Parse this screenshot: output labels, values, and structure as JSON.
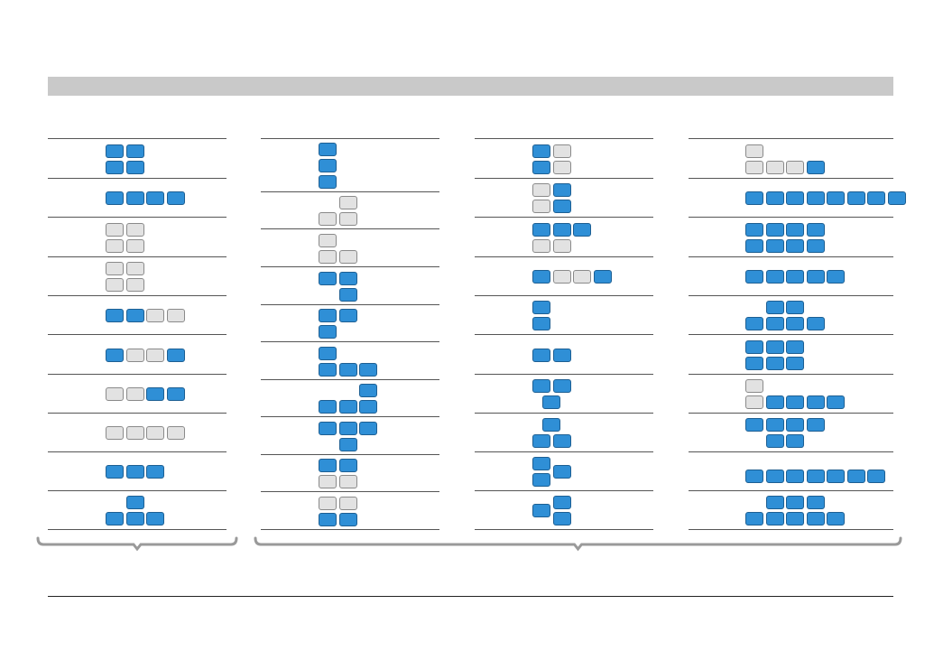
{
  "colors": {
    "on": "#2f8fd6",
    "off": "#e2e2e2",
    "rule": "#555555",
    "bracket": "#9a9a9a",
    "header": "#c9c9c9"
  },
  "columns": [
    {
      "rows": [
        {
          "cells": [
            [
              1,
              1,
              "on"
            ],
            [
              2,
              1,
              "on"
            ],
            [
              1,
              2,
              "on"
            ],
            [
              2,
              2,
              "on"
            ]
          ]
        },
        {
          "cells": [
            [
              1,
              1,
              "on"
            ],
            [
              2,
              1,
              "on"
            ],
            [
              3,
              1,
              "on"
            ],
            [
              4,
              1,
              "on"
            ]
          ]
        },
        {
          "cells": [
            [
              1,
              1,
              "off"
            ],
            [
              2,
              1,
              "off"
            ],
            [
              1,
              2,
              "off"
            ],
            [
              2,
              2,
              "off"
            ]
          ]
        },
        {
          "cells": [
            [
              1,
              1,
              "off"
            ],
            [
              2,
              1,
              "off"
            ],
            [
              1,
              2,
              "off"
            ],
            [
              2,
              2,
              "off"
            ]
          ]
        },
        {
          "cells": [
            [
              1,
              1,
              "on"
            ],
            [
              2,
              1,
              "on"
            ],
            [
              3,
              1,
              "off"
            ],
            [
              4,
              1,
              "off"
            ]
          ]
        },
        {
          "cells": [
            [
              1,
              1,
              "on"
            ],
            [
              2,
              1,
              "off"
            ],
            [
              3,
              1,
              "off"
            ],
            [
              4,
              1,
              "on"
            ]
          ]
        },
        {
          "cells": [
            [
              1,
              1,
              "off"
            ],
            [
              2,
              1,
              "off"
            ],
            [
              3,
              1,
              "on"
            ],
            [
              4,
              1,
              "on"
            ]
          ]
        },
        {
          "cells": [
            [
              1,
              1,
              "off"
            ],
            [
              2,
              1,
              "off"
            ],
            [
              3,
              1,
              "off"
            ],
            [
              4,
              1,
              "off"
            ]
          ]
        },
        {
          "cells": [
            [
              1,
              1,
              "on"
            ],
            [
              2,
              1,
              "on"
            ],
            [
              3,
              1,
              "on"
            ]
          ]
        },
        {
          "cells": [
            [
              2,
              1,
              "on"
            ],
            [
              1,
              2,
              "on"
            ],
            [
              2,
              2,
              "on"
            ],
            [
              3,
              2,
              "on"
            ]
          ]
        }
      ]
    },
    {
      "rows": [
        {
          "cells": [
            [
              1,
              1,
              "on"
            ],
            [
              1,
              2,
              "on"
            ],
            [
              1,
              3,
              "on"
            ]
          ]
        },
        {
          "cells": [
            [
              2,
              1,
              "off"
            ],
            [
              1,
              2,
              "off"
            ],
            [
              2,
              2,
              "off"
            ]
          ]
        },
        {
          "cells": [
            [
              1,
              1,
              "off"
            ],
            [
              1,
              2,
              "off"
            ],
            [
              2,
              2,
              "off"
            ]
          ]
        },
        {
          "cells": [
            [
              1,
              1,
              "on"
            ],
            [
              2,
              1,
              "on"
            ],
            [
              2,
              2,
              "on"
            ]
          ]
        },
        {
          "cells": [
            [
              1,
              1,
              "on"
            ],
            [
              2,
              1,
              "on"
            ],
            [
              1,
              2,
              "on"
            ]
          ]
        },
        {
          "cells": [
            [
              1,
              1,
              "on"
            ],
            [
              1,
              2,
              "on"
            ],
            [
              2,
              2,
              "on"
            ],
            [
              3,
              2,
              "on"
            ]
          ]
        },
        {
          "cells": [
            [
              3,
              1,
              "on"
            ],
            [
              1,
              2,
              "on"
            ],
            [
              2,
              2,
              "on"
            ],
            [
              3,
              2,
              "on"
            ]
          ]
        },
        {
          "cells": [
            [
              1,
              1,
              "on"
            ],
            [
              2,
              1,
              "on"
            ],
            [
              3,
              1,
              "on"
            ],
            [
              2,
              2,
              "on"
            ]
          ]
        },
        {
          "cells": [
            [
              1,
              1,
              "on"
            ],
            [
              2,
              1,
              "on"
            ],
            [
              1,
              2,
              "off"
            ],
            [
              2,
              2,
              "off"
            ]
          ]
        },
        {
          "cells": [
            [
              1,
              1,
              "off"
            ],
            [
              2,
              1,
              "off"
            ],
            [
              1,
              2,
              "on"
            ],
            [
              2,
              2,
              "on"
            ]
          ]
        }
      ]
    },
    {
      "rows": [
        {
          "cells": [
            [
              1,
              1,
              "on"
            ],
            [
              2,
              1,
              "off"
            ],
            [
              1,
              2,
              "on"
            ],
            [
              2,
              2,
              "off"
            ]
          ]
        },
        {
          "cells": [
            [
              1,
              1,
              "off"
            ],
            [
              2,
              1,
              "on"
            ],
            [
              1,
              2,
              "off"
            ],
            [
              2,
              2,
              "on"
            ]
          ]
        },
        {
          "cells": [
            [
              1,
              1,
              "on"
            ],
            [
              2,
              1,
              "on"
            ],
            [
              3,
              1,
              "on"
            ],
            [
              1,
              2,
              "off"
            ],
            [
              2,
              2,
              "off"
            ]
          ]
        },
        {
          "cells": [
            [
              1,
              1,
              "on"
            ],
            [
              2,
              1,
              "off"
            ],
            [
              3,
              1,
              "off"
            ],
            [
              4,
              1,
              "on"
            ]
          ]
        },
        {
          "cells": [
            [
              1,
              1,
              "on"
            ],
            [
              1,
              2,
              "on"
            ]
          ]
        },
        {
          "cells": [
            [
              1,
              1,
              "on"
            ],
            [
              2,
              1,
              "on"
            ]
          ]
        },
        {
          "cells": [
            [
              1,
              1,
              "on"
            ],
            [
              2,
              1,
              "on"
            ],
            [
              1.5,
              2,
              "on"
            ]
          ]
        },
        {
          "cells": [
            [
              1.5,
              1,
              "on"
            ],
            [
              1,
              2,
              "on"
            ],
            [
              2,
              2,
              "on"
            ]
          ]
        },
        {
          "cells": [
            [
              1,
              1,
              "on"
            ],
            [
              2,
              1.5,
              "on"
            ],
            [
              1,
              2,
              "on"
            ]
          ]
        },
        {
          "cells": [
            [
              2,
              1,
              "on"
            ],
            [
              1,
              1.5,
              "on"
            ],
            [
              2,
              2,
              "on"
            ]
          ]
        }
      ]
    },
    {
      "rows": [
        {
          "cells": [
            [
              1,
              1,
              "off"
            ],
            [
              1,
              2,
              "off"
            ],
            [
              2,
              2,
              "off"
            ],
            [
              3,
              2,
              "off"
            ],
            [
              4,
              2,
              "on"
            ]
          ]
        },
        {
          "cells": [
            [
              1,
              1,
              "on"
            ],
            [
              2,
              1,
              "on"
            ],
            [
              3,
              1,
              "on"
            ],
            [
              4,
              1,
              "on"
            ],
            [
              5,
              1,
              "on"
            ],
            [
              6,
              1,
              "on"
            ],
            [
              7,
              1,
              "on"
            ],
            [
              8,
              1,
              "on"
            ]
          ]
        },
        {
          "cells": [
            [
              1,
              1,
              "on"
            ],
            [
              2,
              1,
              "on"
            ],
            [
              3,
              1,
              "on"
            ],
            [
              4,
              1,
              "on"
            ],
            [
              1,
              2,
              "on"
            ],
            [
              2,
              2,
              "on"
            ],
            [
              3,
              2,
              "on"
            ],
            [
              4,
              2,
              "on"
            ]
          ]
        },
        {
          "cells": [
            [
              1,
              1,
              "on"
            ],
            [
              2,
              1,
              "on"
            ],
            [
              3,
              1,
              "on"
            ],
            [
              4,
              1,
              "on"
            ],
            [
              5,
              1,
              "on"
            ]
          ]
        },
        {
          "cells": [
            [
              2,
              1,
              "on"
            ],
            [
              3,
              1,
              "on"
            ],
            [
              1,
              2,
              "on"
            ],
            [
              2,
              2,
              "on"
            ],
            [
              3,
              2,
              "on"
            ],
            [
              4,
              2,
              "on"
            ]
          ]
        },
        {
          "cells": [
            [
              1,
              1,
              "on"
            ],
            [
              2,
              1,
              "on"
            ],
            [
              3,
              1,
              "on"
            ],
            [
              1,
              2,
              "on"
            ],
            [
              2,
              2,
              "on"
            ],
            [
              3,
              2,
              "on"
            ]
          ]
        },
        {
          "cells": [
            [
              1,
              1,
              "off"
            ],
            [
              1,
              2,
              "off"
            ],
            [
              2,
              2,
              "on"
            ],
            [
              3,
              2,
              "on"
            ],
            [
              4,
              2,
              "on"
            ],
            [
              5,
              2,
              "on"
            ]
          ]
        },
        {
          "cells": [
            [
              1,
              1,
              "on"
            ],
            [
              2,
              1,
              "on"
            ],
            [
              3,
              1,
              "on"
            ],
            [
              4,
              1,
              "on"
            ],
            [
              2,
              2,
              "on"
            ],
            [
              3,
              2,
              "on"
            ]
          ]
        },
        {
          "cells": [
            [
              1,
              1.5,
              "on"
            ],
            [
              2,
              1.5,
              "on"
            ],
            [
              3,
              1.5,
              "on"
            ],
            [
              4,
              1.5,
              "on"
            ],
            [
              5,
              1.5,
              "on"
            ],
            [
              6,
              1.5,
              "on"
            ],
            [
              7,
              1.5,
              "on"
            ]
          ]
        },
        {
          "cells": [
            [
              2,
              1,
              "on"
            ],
            [
              3,
              1,
              "on"
            ],
            [
              4,
              1,
              "on"
            ],
            [
              1,
              2,
              "on"
            ],
            [
              2,
              2,
              "on"
            ],
            [
              3,
              2,
              "on"
            ],
            [
              4,
              2,
              "on"
            ],
            [
              5,
              2,
              "on"
            ]
          ]
        }
      ]
    }
  ],
  "brackets": [
    {
      "covers_columns": [
        1
      ]
    },
    {
      "covers_columns": [
        2,
        3,
        4
      ]
    }
  ]
}
